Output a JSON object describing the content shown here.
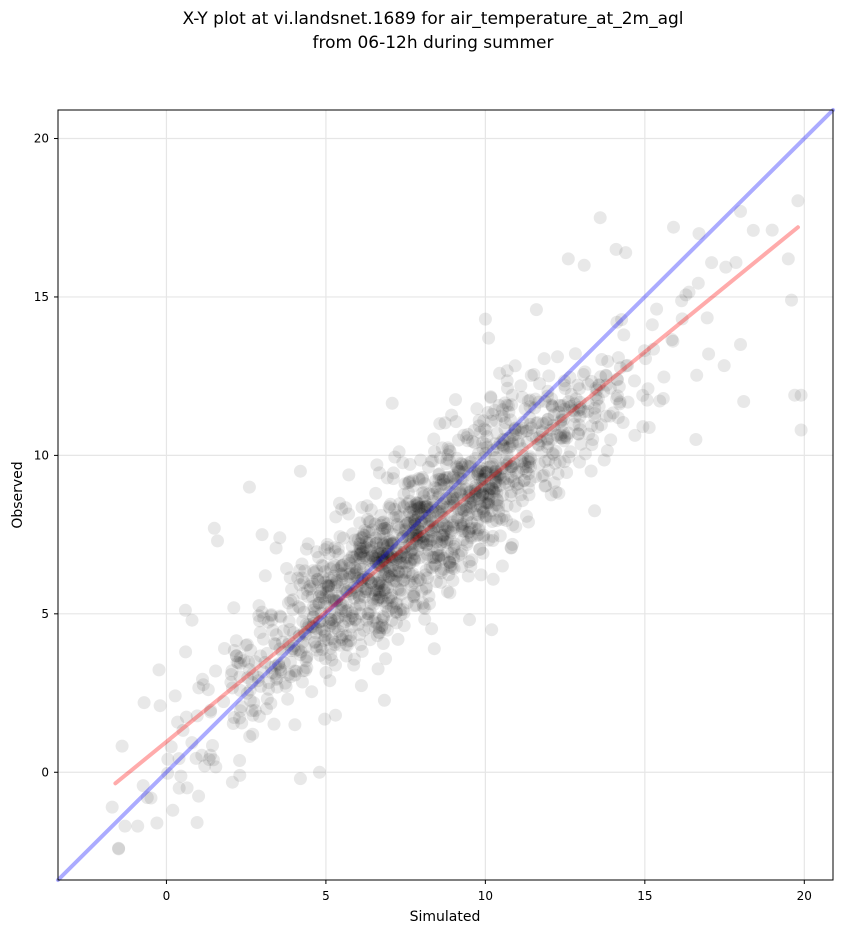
{
  "chart_data": {
    "type": "scatter",
    "title_line1": "X-Y plot at vi.landsnet.1689 for air_temperature_at_2m_agl",
    "title_line2": "from 06-12h during summer",
    "xlabel": "Simulated",
    "ylabel": "Observed",
    "xlim": [
      -3.4,
      20.9
    ],
    "ylim": [
      -3.4,
      20.9
    ],
    "xticks": [
      0,
      5,
      10,
      15,
      20
    ],
    "yticks": [
      0,
      5,
      10,
      15,
      20
    ],
    "grid": true,
    "points": {
      "count": 1500,
      "color": "#000000",
      "opacity": 0.09,
      "regression_slope": 0.8,
      "regression_intercept": 1.1,
      "noise_sd": 1.2,
      "x_mean": 8.0,
      "x_sd": 3.2,
      "outliers": [
        [
          -1.5,
          -2.4
        ],
        [
          -1.3,
          -1.7
        ],
        [
          -0.9,
          -1.7
        ],
        [
          -0.3,
          -1.6
        ],
        [
          0.2,
          -1.2
        ],
        [
          -1.7,
          -1.1
        ],
        [
          -0.6,
          -0.8
        ],
        [
          0.4,
          -0.5
        ],
        [
          4.2,
          -0.2
        ],
        [
          4.8,
          0.0
        ],
        [
          2.3,
          -0.1
        ],
        [
          1.2,
          0.2
        ],
        [
          2.6,
          9.0
        ],
        [
          4.2,
          9.5
        ],
        [
          1.5,
          7.7
        ],
        [
          1.6,
          7.3
        ],
        [
          -0.7,
          2.2
        ],
        [
          -0.2,
          2.1
        ],
        [
          0.6,
          3.8
        ],
        [
          0.8,
          4.8
        ],
        [
          13.6,
          17.5
        ],
        [
          15.9,
          17.2
        ],
        [
          18.0,
          17.7
        ],
        [
          18.4,
          17.1
        ],
        [
          14.1,
          16.5
        ],
        [
          16.7,
          17.0
        ],
        [
          19.5,
          16.2
        ],
        [
          19.6,
          14.9
        ],
        [
          19.7,
          11.9
        ],
        [
          19.9,
          11.9
        ],
        [
          19.9,
          10.8
        ],
        [
          18.1,
          11.7
        ],
        [
          16.6,
          10.5
        ],
        [
          15.1,
          12.1
        ],
        [
          17.0,
          13.2
        ],
        [
          18.0,
          13.5
        ],
        [
          10.0,
          14.3
        ],
        [
          10.1,
          13.7
        ],
        [
          11.6,
          14.6
        ],
        [
          12.6,
          16.2
        ],
        [
          13.1,
          16.0
        ],
        [
          14.4,
          16.4
        ],
        [
          4.4,
          3.3
        ],
        [
          5.3,
          1.8
        ],
        [
          10.2,
          4.5
        ],
        [
          8.4,
          3.9
        ],
        [
          3.0,
          7.5
        ],
        [
          3.1,
          6.2
        ]
      ]
    },
    "series": [
      {
        "name": "",
        "color": "#0000ff",
        "opacity": 0.33,
        "x": [
          -3.4,
          20.9
        ],
        "y": [
          -3.4,
          20.9
        ]
      },
      {
        "name": "",
        "color": "#ff0000",
        "opacity": 0.33,
        "x": [
          -1.6,
          19.8
        ],
        "y": [
          -0.35,
          17.2
        ]
      }
    ]
  }
}
